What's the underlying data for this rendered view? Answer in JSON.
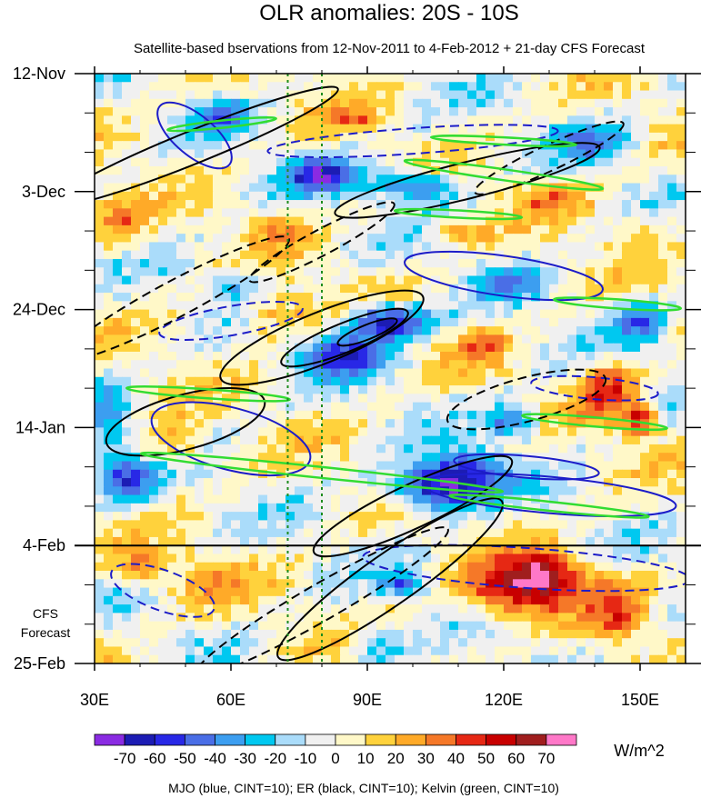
{
  "chart_data": {
    "type": "heatmap",
    "title": "OLR anomalies: 20S - 10S",
    "subtitle": "Satellite-based bservations from 12-Nov-2011 to 4-Feb-2012 + 21-day CFS Forecast",
    "x_ticks": [
      "30E",
      "60E",
      "90E",
      "120E",
      "150E"
    ],
    "x_tick_values": [
      30,
      60,
      90,
      120,
      150
    ],
    "xlim": [
      30,
      160
    ],
    "y_ticks": [
      "12-Nov",
      "3-Dec",
      "24-Dec",
      "14-Jan",
      "4-Feb",
      "25-Feb"
    ],
    "y_tick_days": [
      0,
      21,
      42,
      63,
      84,
      105
    ],
    "ylim_days": [
      0,
      105
    ],
    "forecast_start_day": 84,
    "forecast_label": [
      "CFS",
      "Forecast"
    ],
    "reference_lines_lon": [
      72.5,
      80
    ],
    "colorbar": {
      "levels": [
        -70,
        -60,
        -50,
        -40,
        -30,
        -20,
        -10,
        0,
        10,
        20,
        30,
        40,
        50,
        60,
        70
      ],
      "labels": [
        "-70",
        "-60",
        "-50",
        "-40",
        "-30",
        "-20",
        "-10",
        "0",
        "10",
        "20",
        "30",
        "40",
        "50",
        "60",
        "70"
      ],
      "colors": [
        "#8a2be2",
        "#1c1cb4",
        "#2828e6",
        "#4a6ee6",
        "#3c9ef0",
        "#00c8f0",
        "#aadcfa",
        "#f0f0f0",
        "#fff8c8",
        "#ffd23c",
        "#ffaa28",
        "#f57828",
        "#e62814",
        "#c80000",
        "#a01e1e",
        "#ff78c8"
      ],
      "units": "W/m^2"
    },
    "contour_legend": "MJO (blue, CINT=10); ER (black, CINT=10); Kelvin (green, CINT=10)",
    "contour_colors": {
      "MJO": "#1c1cc8",
      "ER": "#000000",
      "Kelvin": "#32dc32"
    }
  }
}
